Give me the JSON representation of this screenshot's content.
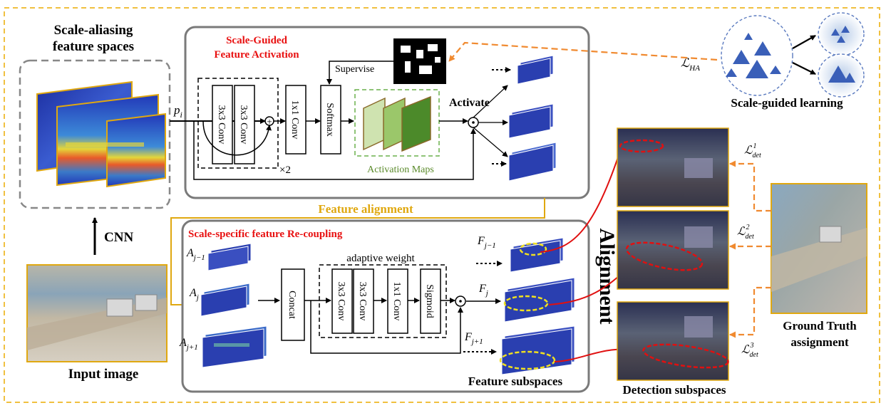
{
  "left_panel": {
    "title_line1": "Scale-aliasing",
    "title_line2": "feature spaces",
    "cnn_label": "CNN",
    "input_label": "Input image"
  },
  "top_module": {
    "title_line1": "Scale-Guided",
    "title_line2": "Feature Activation",
    "input_symbol": "p",
    "input_sub": "i",
    "conv_a": "3x3 Conv",
    "conv_b": "3x3 Conv",
    "repeat": "×2",
    "conv1x1": "1x1 Conv",
    "softmax": "Softmax",
    "supervise": "Supervise",
    "activation_maps": "Activation Maps",
    "activate": "Activate"
  },
  "feature_alignment_label": "Feature alignment",
  "bottom_module": {
    "title": "Scale-specific feature Re-coupling",
    "a_prev": "A",
    "a_prev_sub": "j−1",
    "a_cur": "A",
    "a_cur_sub": "j",
    "a_next": "A",
    "a_next_sub": "j+1",
    "concat": "Concat",
    "adaptive_weight": "adaptive weight",
    "conv_a": "3x3 Conv",
    "conv_b": "3x3 Conv",
    "conv1x1": "1x1 Conv",
    "sigmoid": "Sigmoid",
    "f_prev": "F",
    "f_prev_sub": "j−1",
    "f_cur": "F",
    "f_cur_sub": "j",
    "f_next": "F",
    "f_next_sub": "j+1",
    "feature_subspaces": "Feature subspaces"
  },
  "right_panel": {
    "loss_ha": "ℒ",
    "loss_ha_sub": "HA",
    "scale_guided_learning": "Scale-guided learning",
    "alignment": "Alignment",
    "loss_det": "ℒ",
    "loss_det_sub": "det",
    "loss_det_sup1": "1",
    "loss_det_sup2": "2",
    "loss_det_sup3": "3",
    "gt_line1": "Ground Truth",
    "gt_line2": "assignment",
    "detection_subspaces": "Detection subspaces"
  },
  "colors": {
    "outer_dash": "#f0c040",
    "gold": "#e0a810",
    "red_text": "#e81010",
    "orange_dash": "#f08a30",
    "green_text": "#5a8a2a",
    "feature_blue": "#2a3fb0",
    "red_link": "#e01010"
  }
}
